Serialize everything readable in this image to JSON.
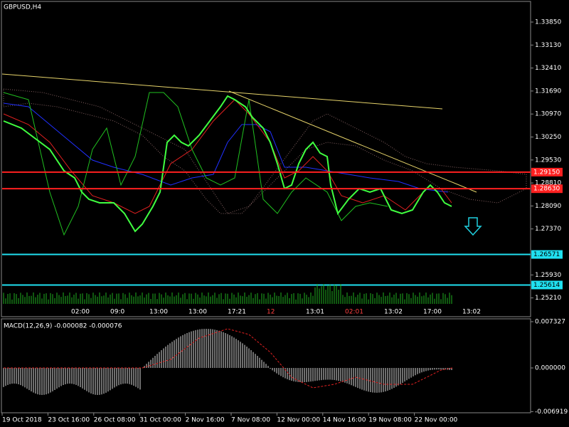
{
  "header": {
    "symbol": "GBPUSD,H4"
  },
  "price_axis": {
    "ticks": [
      "1.33850",
      "1.33130",
      "1.32410",
      "1.31690",
      "1.30970",
      "1.30250",
      "1.29530",
      "1.28810",
      "1.28090",
      "1.27370",
      "1.25930",
      "1.25210"
    ],
    "tick_values": [
      1.3385,
      1.3313,
      1.3241,
      1.3169,
      1.3097,
      1.3025,
      1.2953,
      1.2881,
      1.2809,
      1.2737,
      1.2593,
      1.2521
    ]
  },
  "price_labels": [
    {
      "text": "1.29150",
      "value": 1.2915,
      "kind": "red"
    },
    {
      "text": "1.28630",
      "value": 1.2863,
      "kind": "red"
    },
    {
      "text": "1.26571",
      "value": 1.26571,
      "kind": "cyan"
    },
    {
      "text": "1.25614",
      "value": 1.25614,
      "kind": "cyan"
    }
  ],
  "macd": {
    "label": "MACD(12,26,9) -0.000082 -0.000076",
    "ticks": [
      "0.007327",
      "0.000000",
      "-0.006919"
    ],
    "tick_values": [
      0.007327,
      0,
      -0.006919
    ]
  },
  "time_axis": [
    "19 Oct 2018",
    "23 Oct 16:00",
    "26 Oct 08:00",
    "31 Oct 00:00",
    "2 Nov 16:00",
    "7 Nov 08:00",
    "12 Nov 00:00",
    "14 Nov 16:00",
    "19 Nov 08:00",
    "22 Nov 00:00"
  ],
  "event_strip": [
    "02:00",
    "09:0",
    "13:00",
    "13:00",
    "17:21",
    "12",
    "13:01",
    "02:01",
    "13:02",
    "17:00",
    "13:02"
  ]
}
